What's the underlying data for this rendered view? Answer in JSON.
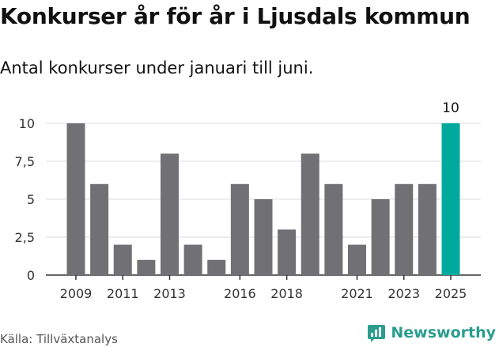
{
  "title": "Konkurser år för år i Ljusdals kommun",
  "subtitle": "Antal konkurser under januari till juni.",
  "source": "Källa: Tillväxtanalys",
  "brand": {
    "name": "Newsworthy",
    "icon": "newsworthy-logo-icon",
    "color": "#2a9d8f"
  },
  "colors": {
    "bar": "#717075",
    "highlight": "#00a99d",
    "grid": "#dddddd",
    "axis": "#333333"
  },
  "chart_data": {
    "type": "bar",
    "title": "Konkurser år för år i Ljusdals kommun",
    "subtitle": "Antal konkurser under januari till juni.",
    "xlabel": "",
    "ylabel": "",
    "categories": [
      "2009",
      "2010",
      "2011",
      "2012",
      "2013",
      "2014",
      "2015",
      "2016",
      "2017",
      "2018",
      "2019",
      "2020",
      "2021",
      "2022",
      "2023",
      "2024",
      "2025"
    ],
    "values": [
      10,
      6,
      2,
      1,
      8,
      2,
      1,
      6,
      5,
      3,
      8,
      6,
      2,
      5,
      6,
      6,
      10
    ],
    "ylim": [
      0,
      10
    ],
    "yticks": [
      0,
      2.5,
      5,
      7.5,
      10
    ],
    "ytick_labels": [
      "0",
      "2,5",
      "5",
      "7,5",
      "10"
    ],
    "xtick_labels": [
      "2009",
      "2011",
      "2013",
      "2016",
      "2018",
      "2021",
      "2023",
      "2025"
    ],
    "highlight": {
      "category": "2025",
      "label": "10"
    },
    "grid": true,
    "legend": "none"
  }
}
